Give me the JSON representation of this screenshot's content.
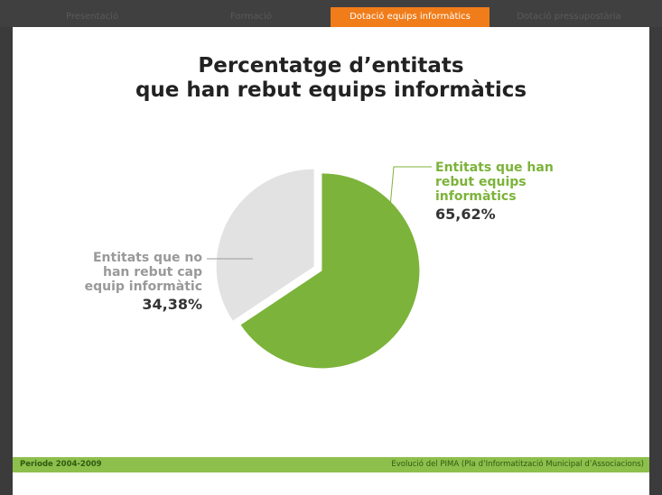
{
  "nav": {
    "tabs": [
      "Presentació",
      "Formació",
      "Dotació equips informàtics",
      "Dotació pressupostària"
    ],
    "active": 2
  },
  "chart_data": {
    "type": "pie",
    "title": [
      "Percentatge d’entitats",
      "que han rebut equips informàtics"
    ],
    "categories": [
      "Entitats que han rebut equips informàtics",
      "Entitats que no han rebut cap equip informàtic"
    ],
    "values": [
      65.62,
      34.38
    ],
    "value_labels": [
      "65,62%",
      "34,38%"
    ],
    "colors": [
      "#7cb33a",
      "#e2e2e2"
    ]
  },
  "footer": {
    "left": "Periode 2004-2009",
    "right": "Evolució del PIMA (Pla d’Informatització Municipal d’Associacions)"
  }
}
